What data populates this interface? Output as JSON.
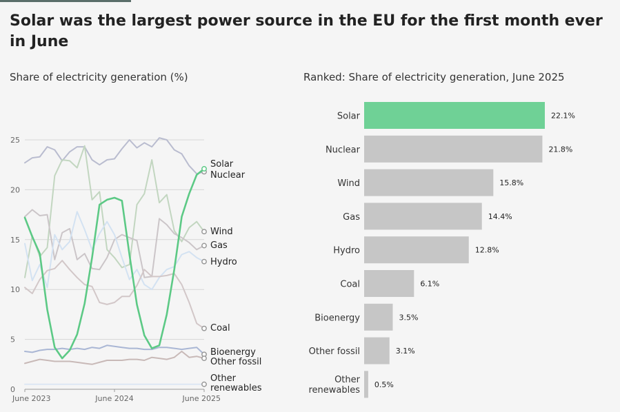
{
  "title": "Solar was the largest power source in the EU for the first month ever in June",
  "left_subtitle": "Share of electricity generation (%)",
  "right_subtitle": "Ranked: Share of electricity generation, June 2025",
  "colors": {
    "solar": "#5cc985",
    "bar_highlight": "#6fd196",
    "bar": "#c6c6c6",
    "nuclear": "#b9bccf",
    "wind": "#c2d6c0",
    "gas": "#cbc5c8",
    "hydro": "#d3e2f2",
    "coal": "#d2c7c8",
    "bioenergy": "#a9b6d4",
    "other_fossil": "#c8b9b7",
    "other_renewables": "#dde7f4"
  },
  "chart_data": [
    {
      "type": "line",
      "xlabels": [
        "June 2023",
        "June 2024",
        "June 2025"
      ],
      "x": [
        "2023-06",
        "2023-07",
        "2023-08",
        "2023-09",
        "2023-10",
        "2023-11",
        "2023-12",
        "2024-01",
        "2024-02",
        "2024-03",
        "2024-04",
        "2024-05",
        "2024-06",
        "2024-07",
        "2024-08",
        "2024-09",
        "2024-10",
        "2024-11",
        "2024-12",
        "2025-01",
        "2025-02",
        "2025-03",
        "2025-04",
        "2025-05",
        "2025-06"
      ],
      "ylim": [
        0,
        26
      ],
      "yticks": [
        0,
        5,
        10,
        15,
        20,
        25
      ],
      "grid": true,
      "series": [
        {
          "name": "Nuclear",
          "key": "nuclear",
          "values": [
            22.7,
            23.2,
            23.3,
            24.3,
            24.0,
            22.9,
            23.8,
            24.3,
            24.3,
            23.0,
            22.5,
            23.0,
            23.1,
            24.1,
            25.0,
            24.2,
            24.7,
            24.3,
            25.2,
            25.0,
            24.0,
            23.6,
            22.4,
            21.6,
            21.8
          ]
        },
        {
          "name": "Wind",
          "key": "wind",
          "values": [
            11.2,
            15.4,
            13.3,
            14.2,
            21.4,
            23.0,
            22.9,
            22.2,
            24.4,
            19.0,
            19.8,
            14.0,
            13.2,
            12.2,
            12.5,
            18.5,
            19.6,
            23.0,
            18.7,
            19.5,
            15.9,
            14.8,
            16.2,
            16.8,
            15.8
          ]
        },
        {
          "name": "Gas",
          "key": "gas",
          "values": [
            17.3,
            18.0,
            17.4,
            17.5,
            13.0,
            15.7,
            16.1,
            13.0,
            13.6,
            12.1,
            12.0,
            13.2,
            15.0,
            15.5,
            15.2,
            14.9,
            11.2,
            11.3,
            17.1,
            16.5,
            15.6,
            15.2,
            14.7,
            14.0,
            14.4
          ]
        },
        {
          "name": "Hydro",
          "key": "hydro",
          "values": [
            14.6,
            10.9,
            12.5,
            10.2,
            15.5,
            14.0,
            14.8,
            17.8,
            16.0,
            14.0,
            15.6,
            16.8,
            15.5,
            13.2,
            11.0,
            12.0,
            10.5,
            10.0,
            11.2,
            12.0,
            12.3,
            13.5,
            13.8,
            13.2,
            12.8
          ]
        },
        {
          "name": "Coal",
          "key": "coal",
          "values": [
            10.2,
            9.6,
            11.0,
            11.9,
            12.1,
            12.9,
            12.0,
            11.2,
            10.5,
            10.3,
            8.7,
            8.5,
            8.7,
            9.3,
            9.3,
            10.4,
            12.0,
            11.3,
            11.3,
            11.4,
            11.6,
            10.5,
            8.7,
            6.6,
            6.1
          ]
        },
        {
          "name": "Bioenergy",
          "key": "bioenergy",
          "values": [
            3.8,
            3.7,
            3.9,
            4.0,
            4.0,
            4.1,
            4.0,
            4.1,
            4.0,
            4.2,
            4.1,
            4.4,
            4.3,
            4.2,
            4.1,
            4.1,
            4.0,
            4.0,
            4.2,
            4.2,
            4.1,
            4.0,
            4.1,
            4.2,
            3.5
          ]
        },
        {
          "name": "Other fossil",
          "key": "other_fossil",
          "values": [
            2.6,
            2.8,
            3.0,
            2.9,
            2.8,
            2.8,
            2.8,
            2.7,
            2.6,
            2.5,
            2.7,
            2.9,
            2.9,
            2.9,
            3.0,
            3.0,
            2.9,
            3.2,
            3.1,
            3.0,
            3.2,
            3.8,
            3.2,
            3.3,
            3.1
          ]
        },
        {
          "name": "Other renewables",
          "key": "other_renewables",
          "values": [
            0.5,
            0.5,
            0.5,
            0.5,
            0.5,
            0.5,
            0.5,
            0.5,
            0.5,
            0.5,
            0.5,
            0.5,
            0.5,
            0.5,
            0.5,
            0.5,
            0.5,
            0.5,
            0.5,
            0.5,
            0.5,
            0.5,
            0.5,
            0.5,
            0.5
          ]
        },
        {
          "name": "Solar",
          "key": "solar",
          "values": [
            17.2,
            15.3,
            13.6,
            8.0,
            4.2,
            3.1,
            3.9,
            5.5,
            8.6,
            13.2,
            18.5,
            19.0,
            19.2,
            18.9,
            13.5,
            8.5,
            5.4,
            4.1,
            4.4,
            7.5,
            12.0,
            17.3,
            19.6,
            21.5,
            22.1
          ]
        }
      ],
      "end_labels": [
        {
          "text": "Solar",
          "key": "solar"
        },
        {
          "text": "Nuclear",
          "key": "nuclear"
        },
        {
          "text": "Wind",
          "key": "wind"
        },
        {
          "text": "Gas",
          "key": "gas"
        },
        {
          "text": "Hydro",
          "key": "hydro"
        },
        {
          "text": "Coal",
          "key": "coal"
        },
        {
          "text": "Bioenergy",
          "key": "bioenergy"
        },
        {
          "text": "Other fossil",
          "key": "other_fossil"
        },
        {
          "text": "Other",
          "key": "other_renewables",
          "line2": "renewables"
        }
      ]
    },
    {
      "type": "bar",
      "orientation": "horizontal",
      "categories": [
        "Solar",
        "Nuclear",
        "Wind",
        "Gas",
        "Hydro",
        "Coal",
        "Bioenergy",
        "Other fossil",
        "Other renewables"
      ],
      "values": [
        22.1,
        21.8,
        15.8,
        14.4,
        12.8,
        6.1,
        3.5,
        3.1,
        0.5
      ],
      "value_labels": [
        "22.1%",
        "21.8%",
        "15.8%",
        "14.4%",
        "12.8%",
        "6.1%",
        "3.5%",
        "3.1%",
        "0.5%"
      ],
      "highlight": "Solar",
      "xlim": [
        0,
        22.1
      ]
    }
  ]
}
